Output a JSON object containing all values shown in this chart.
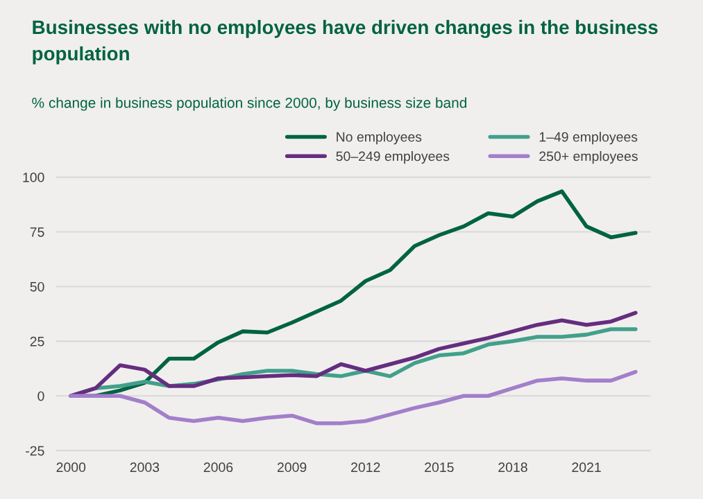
{
  "chart_data": {
    "type": "line",
    "title": "Businesses with no employees have driven changes in the business population",
    "subtitle": "% change in business population since 2000, by business size band",
    "x": [
      2000,
      2001,
      2002,
      2003,
      2004,
      2005,
      2006,
      2007,
      2008,
      2009,
      2010,
      2011,
      2012,
      2013,
      2014,
      2015,
      2016,
      2017,
      2018,
      2019,
      2020,
      2021,
      2022,
      2023
    ],
    "series": [
      {
        "name": "No employees",
        "color": "#006341",
        "values": [
          0,
          0,
          2.5,
          6,
          17,
          17,
          24.5,
          29.5,
          29,
          33.5,
          38.5,
          43.5,
          52.5,
          57.5,
          68.5,
          73.5,
          77.5,
          83.5,
          82,
          89,
          93.5,
          77.5,
          72.5,
          74.5
        ]
      },
      {
        "name": "1–49 employees",
        "color": "#42a08a",
        "values": [
          0,
          3.5,
          4.5,
          6.5,
          4.5,
          5.5,
          7.5,
          10,
          11.5,
          11.5,
          10,
          9,
          11.5,
          9,
          15,
          18.5,
          19.5,
          23.5,
          25,
          27,
          27,
          28,
          30.5,
          30.5
        ]
      },
      {
        "name": "50–249 employees",
        "color": "#652d7f",
        "values": [
          0,
          3.5,
          14,
          12,
          4.5,
          4.5,
          8,
          8.5,
          9,
          9.5,
          9,
          14.5,
          11.5,
          14.5,
          17.5,
          21.5,
          24,
          26.5,
          29.5,
          32.5,
          34.5,
          32.5,
          34,
          38
        ]
      },
      {
        "name": "250+ employees",
        "color": "#a37fca",
        "values": [
          0,
          0,
          0,
          -3,
          -10,
          -11.5,
          -10,
          -11.5,
          -10,
          -9,
          -12.5,
          -12.5,
          -11.5,
          -8.5,
          -5.5,
          -3,
          0,
          0,
          3.5,
          7,
          8,
          7,
          7,
          11
        ]
      }
    ],
    "xlim": [
      1999.4,
      2023.6
    ],
    "xticks": [
      2000,
      2003,
      2006,
      2009,
      2012,
      2015,
      2018,
      2021
    ],
    "ylim": [
      -25,
      100
    ],
    "yticks": [
      -25,
      0,
      25,
      50,
      75,
      100
    ],
    "grid": "y",
    "legend": "top right",
    "marker": "none",
    "line_style": "solid"
  }
}
